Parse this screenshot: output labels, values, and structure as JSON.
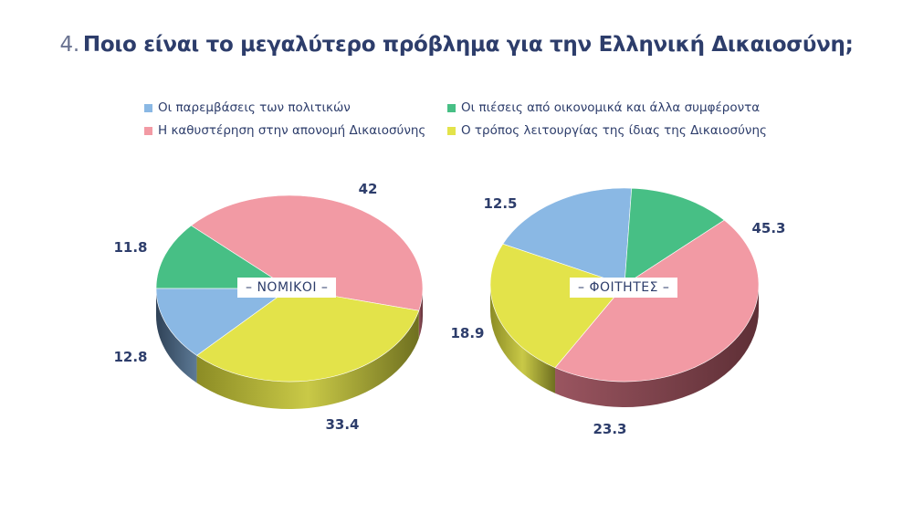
{
  "title_number": "4.",
  "title": "Ποιο είναι το μεγαλύτερο πρόβλημα για την Ελληνική Δικαιοσύνη;",
  "legend": [
    {
      "label": "Οι παρεμβάσεις των πολιτικών",
      "color": "#8ab8e4"
    },
    {
      "label": "Οι πιέσεις από οικονομικά και άλλα συμφέροντα",
      "color": "#47bf85"
    },
    {
      "label": "Η καθυστέρηση στην απονομή Δικαιοσύνης",
      "color": "#f29aa4"
    },
    {
      "label": "Ο τρόπος λειτουργίας της ίδιας της Δικαιοσύνης",
      "color": "#e3e34a"
    }
  ],
  "chart_data": [
    {
      "type": "pie",
      "style": "3d",
      "center_label": "– ΝΟΜΙΚΟΙ –",
      "categories": [
        "Οι παρεμβάσεις των πολιτικών",
        "Οι πιέσεις από οικονομικά και άλλα συμφέροντα",
        "Η καθυστέρηση στην απονομή Δικαιοσύνης",
        "Ο τρόπος λειτουργίας της ίδιας της Δικαιοσύνης"
      ],
      "values": [
        12.8,
        11.8,
        42,
        33.4
      ],
      "data_labels": [
        "12.8",
        "11.8",
        "42",
        "33.4"
      ]
    },
    {
      "type": "pie",
      "style": "3d",
      "center_label": "– ΦΟΙΤΗΤΕΣ –",
      "categories": [
        "Οι παρεμβάσεις των πολιτικών",
        "Οι πιέσεις από οικονομικά και άλλα συμφέροντα",
        "Η καθυστέρηση στην απονομή Δικαιοσύνης",
        "Ο τρόπος λειτουργίας της ίδιας της Δικαιοσύνης"
      ],
      "values": [
        18.9,
        12.5,
        45.3,
        23.3
      ],
      "data_labels": [
        "18.9",
        "12.5",
        "45.3",
        "23.3"
      ]
    }
  ]
}
